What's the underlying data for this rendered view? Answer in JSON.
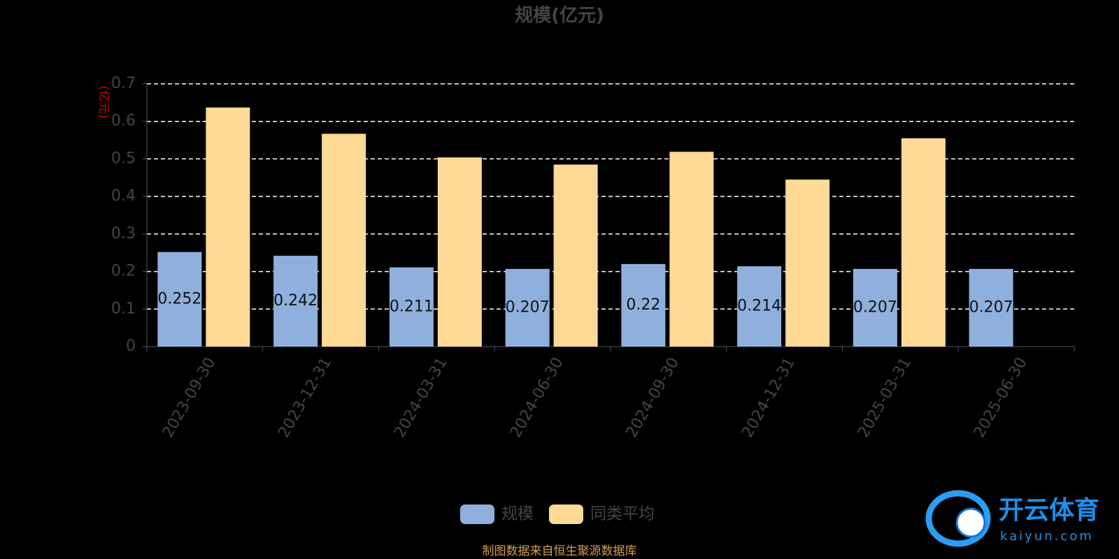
{
  "chart_data": {
    "type": "bar",
    "title": "规模(亿元)",
    "y_unit": "(亿元)",
    "categories": [
      "2023-09-30",
      "2023-12-31",
      "2024-03-31",
      "2024-06-30",
      "2024-09-30",
      "2024-12-31",
      "2025-03-31",
      "2025-06-30"
    ],
    "series": [
      {
        "name": "规模",
        "color": "#8fb0dc",
        "values": [
          0.252,
          0.242,
          0.211,
          0.207,
          0.22,
          0.214,
          0.207,
          0.207
        ],
        "data_labels": true
      },
      {
        "name": "同类平均",
        "color": "#ffd996",
        "values": [
          0.637,
          0.567,
          0.504,
          0.485,
          0.519,
          0.445,
          0.555,
          null
        ],
        "data_labels": false
      }
    ],
    "ylim": [
      0,
      0.7
    ],
    "yticks": [
      0,
      0.1,
      0.2,
      0.3,
      0.4,
      0.5,
      0.6,
      0.7
    ],
    "grid": true,
    "legend": "bottom"
  },
  "footer": "制图数据来自恒生聚源数据库",
  "watermark": {
    "name": "开云体育",
    "site": "kaiyun.com"
  }
}
